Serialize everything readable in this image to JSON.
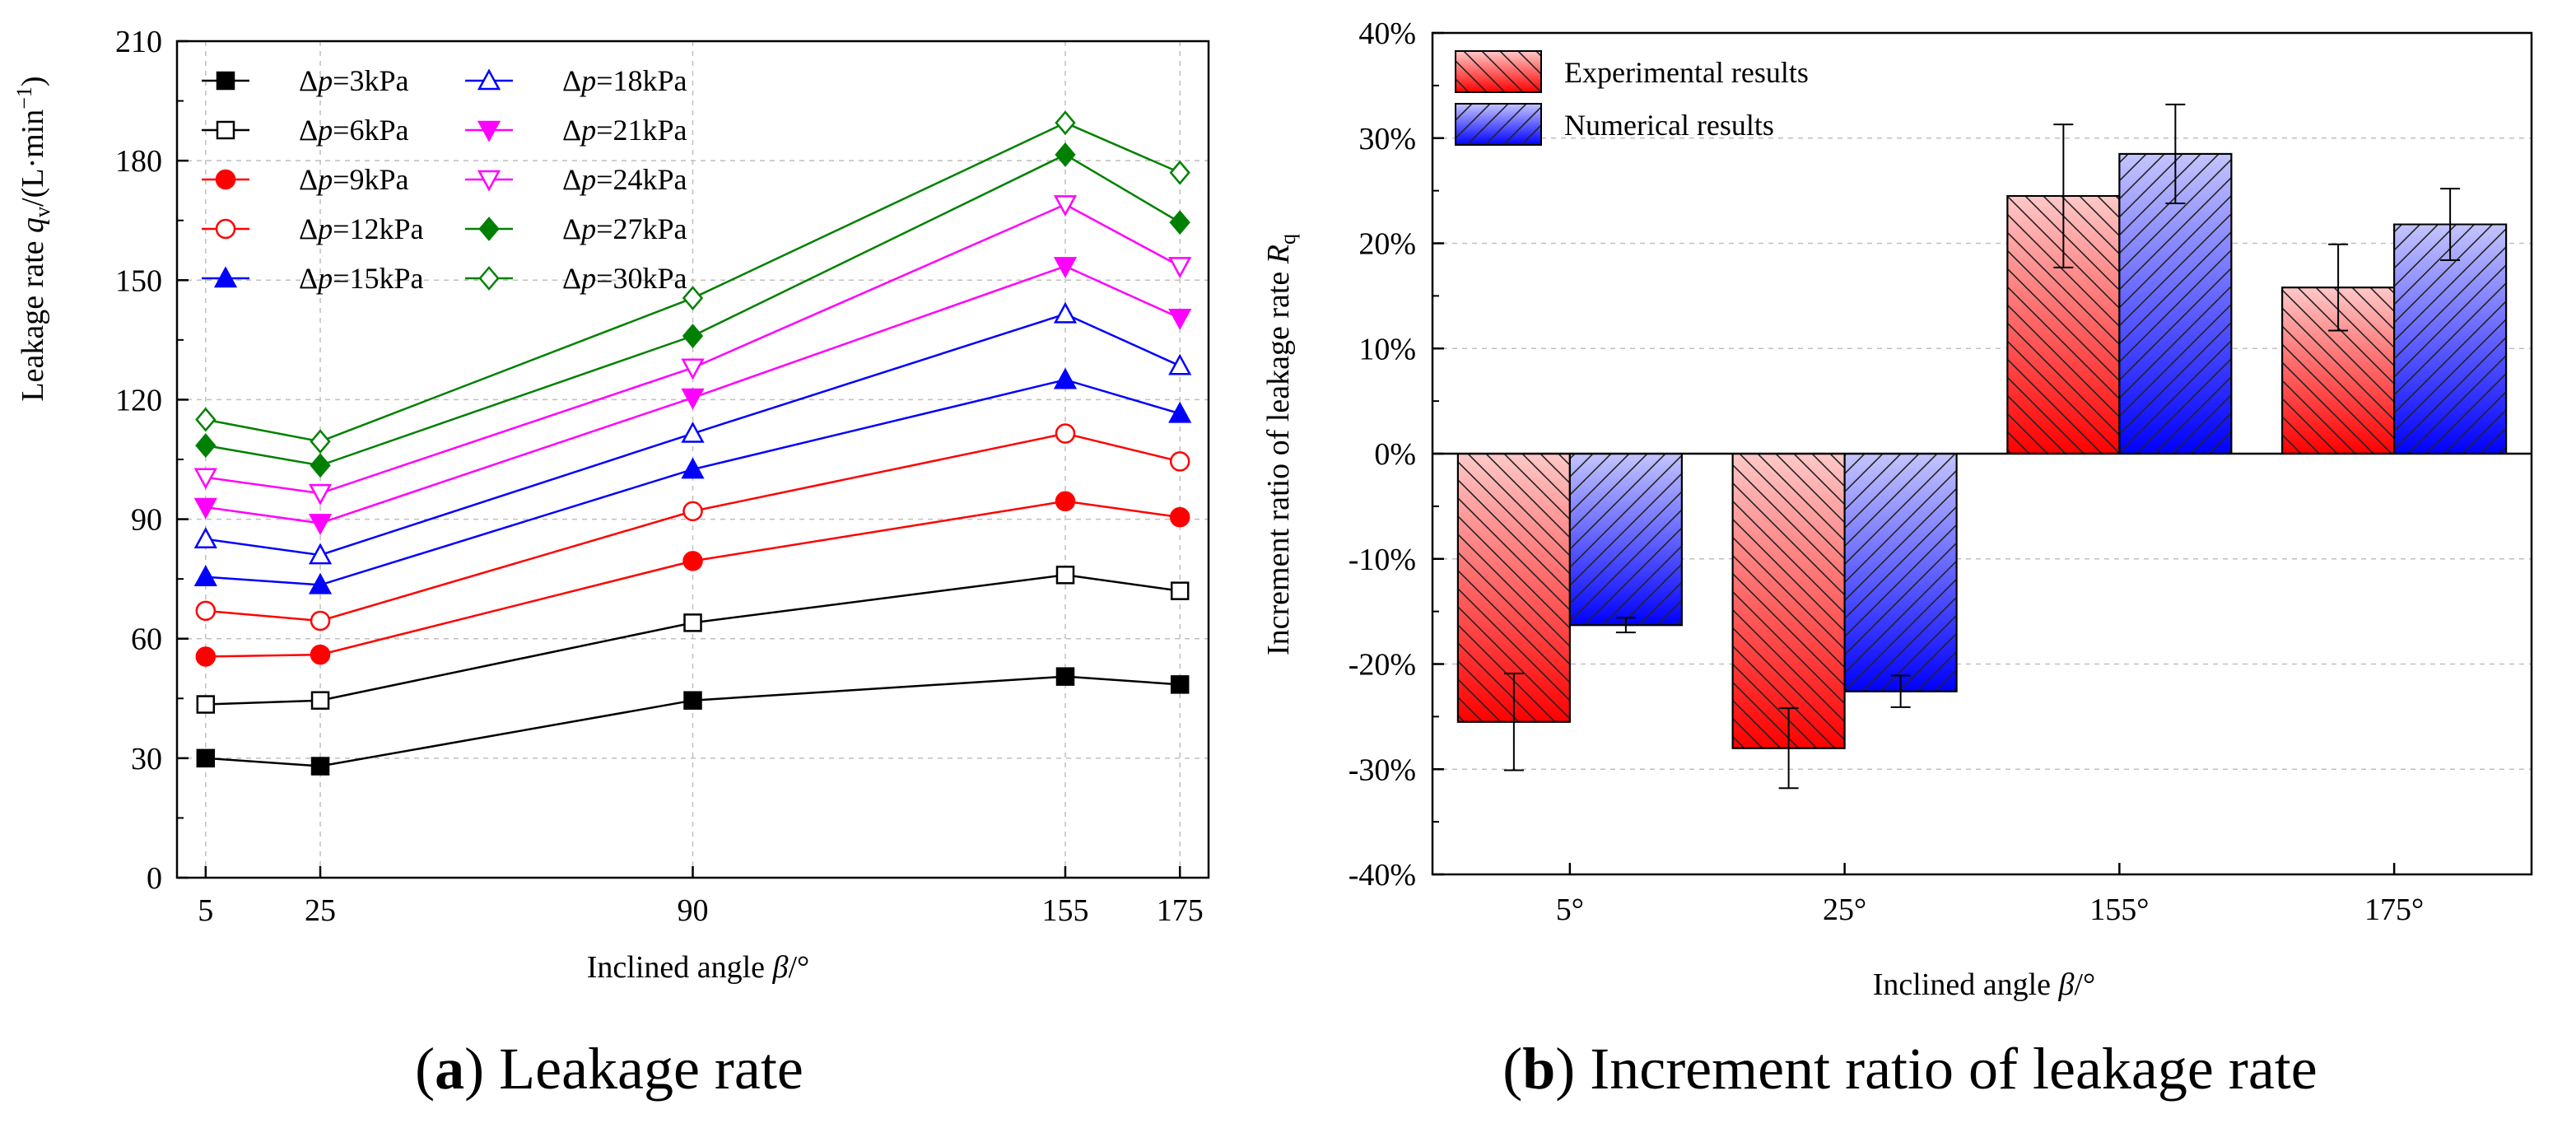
{
  "chart_data": [
    {
      "type": "line",
      "panel": "a",
      "caption_letter": "a",
      "caption_text": "Leakage rate",
      "ylabel_prefix": "Leakage rate ",
      "ylabel_var": "q",
      "ylabel_sub": "v",
      "ylabel_unit": "/(L·min",
      "ylabel_exp": "−1",
      "ylabel_close": ")",
      "xlabel_prefix": "Inclined angle ",
      "xlabel_var": "β",
      "xlabel_unit": "/°",
      "x": [
        5,
        25,
        90,
        155,
        175
      ],
      "xticks": [
        "5",
        "25",
        "90",
        "155",
        "175"
      ],
      "xlim": [
        0,
        180
      ],
      "ylim": [
        0,
        210
      ],
      "yticks": [
        "0",
        "30",
        "60",
        "90",
        "120",
        "150",
        "180",
        "210"
      ],
      "grid": true,
      "legend_position": "top-left",
      "series": [
        {
          "name": "Δp=3kPa",
          "delta": "Δ",
          "var": "p",
          "val": "=3kPa",
          "color": "#000000",
          "marker": "square",
          "filled": true,
          "values": [
            30,
            28,
            44.5,
            50.5,
            48.5
          ]
        },
        {
          "name": "Δp=6kPa",
          "delta": "Δ",
          "var": "p",
          "val": "=6kPa",
          "color": "#000000",
          "marker": "square",
          "filled": false,
          "values": [
            43.5,
            44.5,
            64,
            76,
            72
          ]
        },
        {
          "name": "Δp=9kPa",
          "delta": "Δ",
          "var": "p",
          "val": "=9kPa",
          "color": "#ff0000",
          "marker": "circle",
          "filled": true,
          "values": [
            55.5,
            56,
            79.5,
            94.5,
            90.5
          ]
        },
        {
          "name": "Δp=12kPa",
          "delta": "Δ",
          "var": "p",
          "val": "=12kPa",
          "color": "#ff0000",
          "marker": "circle",
          "filled": false,
          "values": [
            67,
            64.5,
            92,
            111.5,
            104.5
          ]
        },
        {
          "name": "Δp=15kPa",
          "delta": "Δ",
          "var": "p",
          "val": "=15kPa",
          "color": "#0000ff",
          "marker": "triangle",
          "filled": true,
          "values": [
            75.5,
            73.5,
            102.5,
            125,
            116.5
          ]
        },
        {
          "name": "Δp=18kPa",
          "delta": "Δ",
          "var": "p",
          "val": "=18kPa",
          "color": "#0000ff",
          "marker": "triangle",
          "filled": false,
          "values": [
            85,
            81,
            111.5,
            141.5,
            128.5
          ]
        },
        {
          "name": "Δp=21kPa",
          "delta": "Δ",
          "var": "p",
          "val": "=21kPa",
          "color": "#ff00ff",
          "marker": "tridown",
          "filled": true,
          "values": [
            93,
            89,
            120.5,
            153.5,
            140.5
          ]
        },
        {
          "name": "Δp=24kPa",
          "delta": "Δ",
          "var": "p",
          "val": "=24kPa",
          "color": "#ff00ff",
          "marker": "tridown",
          "filled": false,
          "values": [
            100.5,
            96.5,
            128,
            169,
            153.5
          ]
        },
        {
          "name": "Δp=27kPa",
          "delta": "Δ",
          "var": "p",
          "val": "=27kPa",
          "color": "#008000",
          "marker": "diamond",
          "filled": true,
          "values": [
            108.5,
            103.5,
            136,
            181.5,
            164.5
          ]
        },
        {
          "name": "Δp=30kPa",
          "delta": "Δ",
          "var": "p",
          "val": "=30kPa",
          "color": "#008000",
          "marker": "diamond",
          "filled": false,
          "values": [
            115,
            109.5,
            145.5,
            189.5,
            177
          ]
        }
      ]
    },
    {
      "type": "bar",
      "panel": "b",
      "caption_letter": "b",
      "caption_text": "Increment ratio of leakage rate",
      "ylabel_prefix": "Increment ratio of leakage rate ",
      "ylabel_var": "R",
      "ylabel_sub": "q",
      "xlabel_prefix": "Inclined angle ",
      "xlabel_var": "β",
      "xlabel_unit": "/°",
      "categories": [
        "5°",
        "25°",
        "155°",
        "175°"
      ],
      "ylim": [
        -40,
        40
      ],
      "yticks": [
        "-40%",
        "-30%",
        "-20%",
        "-10%",
        "0%",
        "10%",
        "20%",
        "30%",
        "40%"
      ],
      "grid": true,
      "legend_position": "top-left",
      "series": [
        {
          "name": "Experimental results",
          "color_dark": "#ff0000",
          "color_light": "#ffc0c0",
          "hatch": "backslash",
          "values": [
            -25.5,
            -28,
            24.5,
            15.8
          ],
          "errors": [
            4.6,
            3.8,
            6.8,
            4.1
          ]
        },
        {
          "name": "Numerical results",
          "color_dark": "#0000ff",
          "color_light": "#b8b8ff",
          "hatch": "slash",
          "values": [
            -16.3,
            -22.6,
            28.5,
            21.8
          ],
          "errors": [
            0.7,
            1.5,
            4.7,
            3.4
          ]
        }
      ]
    }
  ]
}
